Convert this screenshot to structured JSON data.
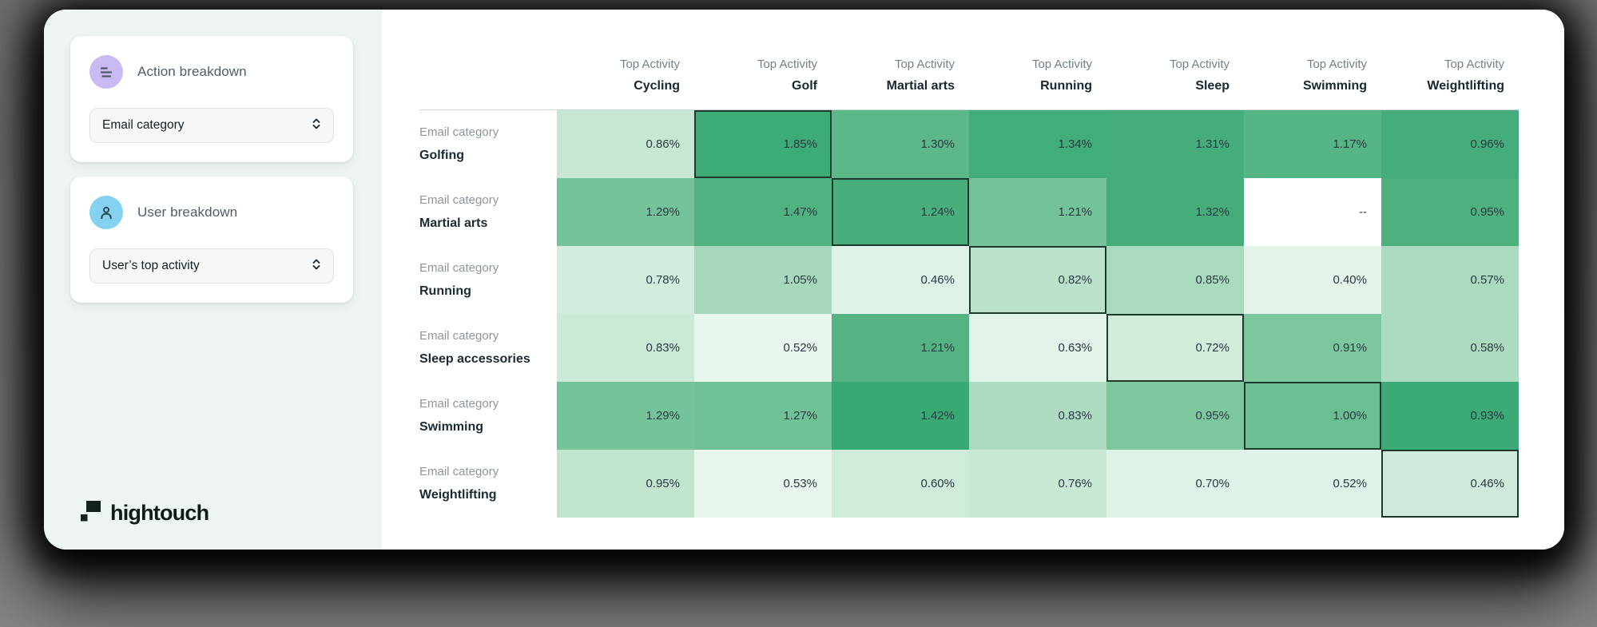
{
  "sidebar": {
    "panels": [
      {
        "icon": "bars-icon",
        "icon_bg": "#c9baf3",
        "title": "Action breakdown",
        "select_value": "Email category"
      },
      {
        "icon": "user-icon",
        "icon_bg": "#85d2f0",
        "title": "User breakdown",
        "select_value": "User’s top activity"
      }
    ],
    "logo_text": "hightouch"
  },
  "colors": {
    "highlight_border": "#1b3a2d",
    "sidebar_bg": "#eef4f1",
    "purple_accent": "#c9baf3",
    "blue_accent": "#85d2f0"
  },
  "chart_data": {
    "type": "heatmap",
    "col_header_prefix": "Top Activity",
    "row_header_prefix": "Email category",
    "columns": [
      "Cycling",
      "Golf",
      "Martial arts",
      "Running",
      "Sleep",
      "Swimming",
      "Weightlifting"
    ],
    "rows": [
      "Golfing",
      "Martial arts",
      "Running",
      "Sleep accessories",
      "Swimming",
      "Weightlifting"
    ],
    "values": [
      [
        "0.86%",
        "1.85%",
        "1.30%",
        "1.34%",
        "1.31%",
        "1.17%",
        "0.96%"
      ],
      [
        "1.29%",
        "1.47%",
        "1.24%",
        "1.21%",
        "1.32%",
        "--",
        "0.95%"
      ],
      [
        "0.78%",
        "1.05%",
        "0.46%",
        "0.82%",
        "0.85%",
        "0.40%",
        "0.57%"
      ],
      [
        "0.83%",
        "0.52%",
        "1.21%",
        "0.63%",
        "0.72%",
        "0.91%",
        "0.58%"
      ],
      [
        "1.29%",
        "1.27%",
        "1.42%",
        "0.83%",
        "0.95%",
        "1.00%",
        "0.93%"
      ],
      [
        "0.95%",
        "0.53%",
        "0.60%",
        "0.76%",
        "0.70%",
        "0.52%",
        "0.46%"
      ]
    ],
    "cell_colors": [
      [
        "#c6e7d4",
        "#3cab77",
        "#5cb888",
        "#42ac7a",
        "#45ad7b",
        "#55b584",
        "#44ad7b"
      ],
      [
        "#74c39a",
        "#50b181",
        "#48ae7d",
        "#73c299",
        "#44ad7a",
        "#ffffff",
        "#4db17f"
      ],
      [
        "#d2edde",
        "#a6d8bd",
        "#def2e7",
        "#b9e1cb",
        "#a8dabf",
        "#e4f4eb",
        "#aadabf"
      ],
      [
        "#cbe9d7",
        "#e9f6ee",
        "#55b282",
        "#e2f3e9",
        "#d2ecdc",
        "#7dc79f",
        "#addbc1"
      ],
      [
        "#74c39a",
        "#71c197",
        "#39a974",
        "#aedcc3",
        "#7dc79f",
        "#69bf92",
        "#3baa76"
      ],
      [
        "#c2e5d0",
        "#e9f6ee",
        "#cfebda",
        "#c9e8d6",
        "#dff2e7",
        "#dff2e7",
        "#cfeada"
      ]
    ],
    "highlighted_cells": [
      [
        0,
        1
      ],
      [
        1,
        2
      ],
      [
        2,
        3
      ],
      [
        3,
        4
      ],
      [
        4,
        5
      ],
      [
        5,
        6
      ]
    ],
    "empty_cell_text": "--"
  }
}
